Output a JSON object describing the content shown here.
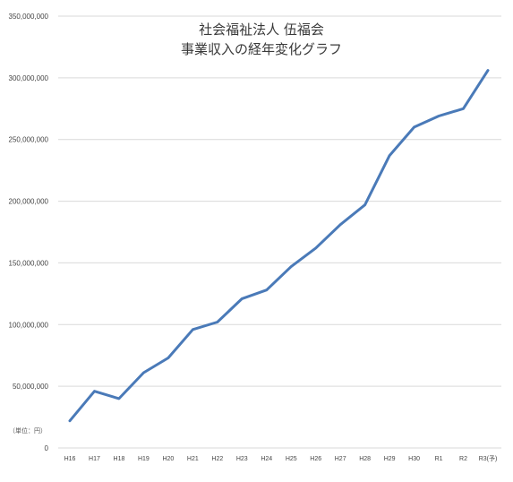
{
  "chart_data": {
    "type": "line",
    "title_line1": "社会福祉法人  伍福会",
    "title_line2": "事業収入の経年変化グラフ",
    "unit_label": "（単位：円）",
    "categories": [
      "H16",
      "H17",
      "H18",
      "H19",
      "H20",
      "H21",
      "H22",
      "H23",
      "H24",
      "H25",
      "H26",
      "H27",
      "H28",
      "H29",
      "H30",
      "R1",
      "R2",
      "R3(予)"
    ],
    "series": [
      {
        "values": [
          22000000,
          46000000,
          40000000,
          61000000,
          73000000,
          96000000,
          102000000,
          121000000,
          128000000,
          147000000,
          162000000,
          181000000,
          197000000,
          237000000,
          260000000,
          269000000,
          275000000,
          306000000
        ],
        "color": "#4a7ab8"
      }
    ],
    "ylim": [
      0,
      350000000
    ],
    "yticks": [
      "0",
      "50,000,000",
      "100,000,000",
      "150,000,000",
      "200,000,000",
      "250,000,000",
      "300,000,000",
      "350,000,000"
    ],
    "grid": true,
    "legend": "none"
  }
}
